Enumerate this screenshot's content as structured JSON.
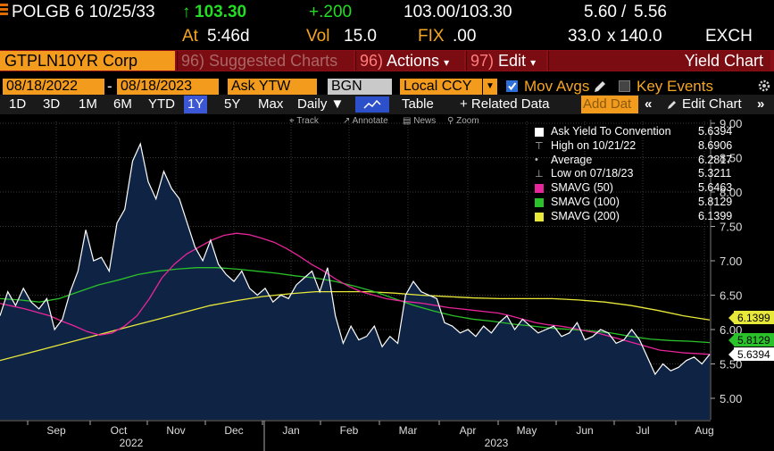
{
  "quote": {
    "security": "POLGB 6 10/25/33",
    "arrow": "↑",
    "last": "103.30",
    "change": "+.200",
    "bid_ask": "103.00/103.30",
    "yield_bid": "5.60",
    "yield_ask": "5.56",
    "time_label": "At",
    "time": "5:46d",
    "vol_label": "Vol",
    "vol": "15.0",
    "fix_label": "FIX",
    "fix": ".00",
    "size": "33.0",
    "size_sep": "x",
    "size2": "140.0",
    "exchange": "EXCH"
  },
  "title_bar": {
    "ticker": "GTPLN10YR Corp",
    "suggested": {
      "num": "96)",
      "label": "Suggested Charts"
    },
    "actions": {
      "num": "96)",
      "label": "Actions",
      "caret": "▾"
    },
    "edit": {
      "num": "97)",
      "label": "Edit",
      "caret": "▾"
    },
    "chart_name": "Yield Chart"
  },
  "params": {
    "start_date": "08/18/2022",
    "sep": "-",
    "end_date": "08/18/2023",
    "field": "Ask YTW",
    "source": "BGN",
    "currency": "Local CCY",
    "mov_avgs": "Mov Avgs",
    "key_events": "Key Events"
  },
  "tabs": {
    "periods": [
      "1D",
      "3D",
      "1M",
      "6M",
      "YTD",
      "1Y",
      "5Y",
      "Max"
    ],
    "selected": "1Y",
    "frequency": "Daily ▼",
    "table": "Table",
    "related": "+ Related Data",
    "add_data": "Add Dat",
    "edit_chart": "Edit Chart"
  },
  "tools": [
    "Track",
    "Annotate",
    "News",
    "Zoom"
  ],
  "colors": {
    "area_fill": "#0f2444",
    "price_line": "#ffffff",
    "sma50": "#e8259a",
    "sma100": "#2ac12a",
    "sma200": "#e8e83a",
    "brand_orange": "#f29b1d",
    "title_red": "#8a0f16"
  },
  "chart_data": {
    "type": "area",
    "ylim": [
      4.5,
      9.0
    ],
    "y_ticks": [
      "9.00",
      "8.50",
      "8.00",
      "7.50",
      "7.00",
      "6.50",
      "6.00",
      "5.50",
      "5.00"
    ],
    "x_ticks": [
      "Sep",
      "Oct",
      "Nov",
      "Dec",
      "Jan",
      "Feb",
      "Mar",
      "Apr",
      "May",
      "Jun",
      "Jul",
      "Aug"
    ],
    "year_labels": [
      "2022",
      "2023"
    ],
    "legend": [
      {
        "label": "Ask Yield To Convention",
        "value": "5.6394",
        "color": "#ffffff",
        "kind": "box"
      },
      {
        "label": "High on 10/21/22",
        "value": "8.6906",
        "kind": "high"
      },
      {
        "label": "Average",
        "value": "6.2817",
        "kind": "avg"
      },
      {
        "label": "Low on 07/18/23",
        "value": "5.3211",
        "kind": "low"
      },
      {
        "label": "SMAVG (50)",
        "value": "5.6463",
        "color": "#e8259a",
        "kind": "box"
      },
      {
        "label": "SMAVG (100)",
        "value": "5.8129",
        "color": "#2ac12a",
        "kind": "box"
      },
      {
        "label": "SMAVG (200)",
        "value": "6.1399",
        "color": "#e8e83a",
        "kind": "box"
      }
    ],
    "right_tags": [
      {
        "value": "6.1399",
        "bg": "#e8e83a",
        "fg": "#000000"
      },
      {
        "value": "5.8129",
        "bg": "#2ac12a",
        "fg": "#000000"
      },
      {
        "value": "5.6394",
        "bg": "#ffffff",
        "fg": "#000000"
      }
    ],
    "price": [
      6.2,
      6.55,
      6.35,
      6.6,
      6.4,
      6.3,
      6.45,
      6.0,
      6.15,
      6.55,
      6.85,
      7.45,
      7.0,
      7.05,
      6.85,
      7.55,
      7.75,
      8.45,
      8.7,
      8.15,
      7.9,
      8.3,
      8.05,
      7.9,
      7.55,
      7.2,
      7.0,
      7.3,
      6.95,
      6.8,
      6.7,
      6.85,
      6.6,
      6.5,
      6.6,
      6.4,
      6.5,
      6.45,
      6.65,
      6.75,
      6.85,
      6.55,
      6.9,
      6.2,
      5.8,
      6.05,
      5.85,
      5.9,
      6.05,
      5.75,
      5.9,
      5.8,
      6.5,
      6.7,
      6.55,
      6.5,
      6.45,
      6.1,
      6.05,
      5.95,
      6.0,
      5.9,
      6.05,
      5.95,
      6.1,
      6.2,
      6.0,
      6.15,
      6.05,
      5.95,
      6.0,
      6.05,
      5.9,
      5.95,
      6.1,
      5.85,
      5.9,
      6.0,
      5.95,
      5.8,
      5.85,
      6.0,
      5.85,
      5.6,
      5.35,
      5.5,
      5.4,
      5.45,
      5.55,
      5.6,
      5.5,
      5.64
    ],
    "sma50": [
      6.38,
      6.34,
      6.3,
      6.25,
      6.2,
      6.12,
      6.05,
      5.97,
      5.92,
      5.95,
      6.05,
      6.2,
      6.45,
      6.75,
      6.95,
      7.1,
      7.2,
      7.3,
      7.37,
      7.4,
      7.38,
      7.33,
      7.27,
      7.18,
      7.07,
      6.95,
      6.85,
      6.73,
      6.63,
      6.55,
      6.5,
      6.45,
      6.42,
      6.4,
      6.38,
      6.35,
      6.32,
      6.3,
      6.28,
      6.26,
      6.24,
      6.2,
      6.15,
      6.1,
      6.07,
      6.05,
      6.02,
      5.98,
      5.95,
      5.9,
      5.85,
      5.8,
      5.75,
      5.7,
      5.68,
      5.66,
      5.65,
      5.64
    ],
    "sma100": [
      6.45,
      6.43,
      6.4,
      6.45,
      6.55,
      6.65,
      6.72,
      6.8,
      6.85,
      6.88,
      6.9,
      6.9,
      6.88,
      6.85,
      6.82,
      6.78,
      6.75,
      6.7,
      6.63,
      6.55,
      6.45,
      6.35,
      6.27,
      6.2,
      6.15,
      6.12,
      6.08,
      6.05,
      6.02,
      6.0,
      5.98,
      5.95,
      5.9,
      5.86,
      5.84,
      5.83,
      5.81
    ],
    "sma200": [
      5.55,
      5.65,
      5.75,
      5.85,
      5.95,
      6.05,
      6.15,
      6.25,
      6.35,
      6.42,
      6.48,
      6.52,
      6.55,
      6.55,
      6.55,
      6.53,
      6.5,
      6.48,
      6.46,
      6.45,
      6.45,
      6.45,
      6.43,
      6.4,
      6.35,
      6.28,
      6.2,
      6.14
    ]
  }
}
